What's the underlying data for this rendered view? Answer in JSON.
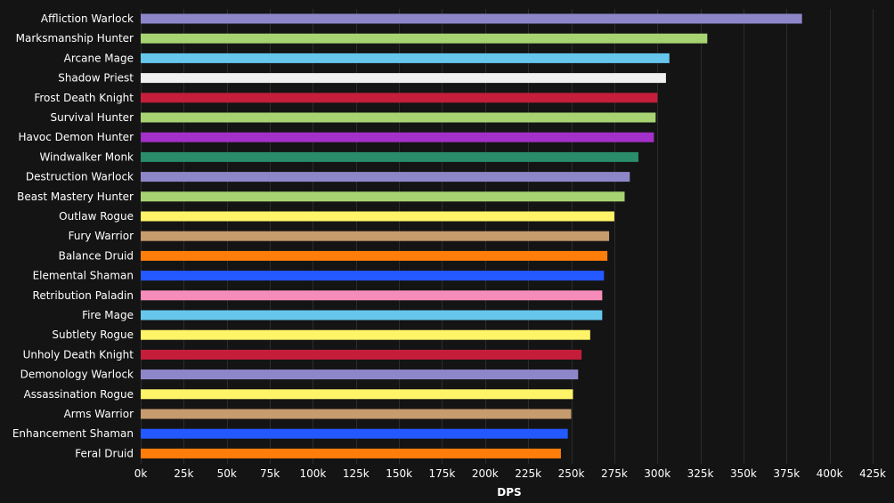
{
  "chart_data": {
    "type": "bar",
    "orientation": "horizontal",
    "xlabel": "DPS",
    "ylabel": "",
    "xlim": [
      0,
      425000
    ],
    "x_ticks": [
      0,
      25000,
      50000,
      75000,
      100000,
      125000,
      150000,
      175000,
      200000,
      225000,
      250000,
      275000,
      300000,
      325000,
      350000,
      375000,
      400000,
      425000
    ],
    "x_tick_labels": [
      "0k",
      "25k",
      "50k",
      "75k",
      "100k",
      "125k",
      "150k",
      "175k",
      "200k",
      "225k",
      "250k",
      "275k",
      "300k",
      "325k",
      "350k",
      "375k",
      "400k",
      "425k"
    ],
    "grid": true,
    "categories": [
      "Affliction Warlock",
      "Marksmanship Hunter",
      "Arcane Mage",
      "Shadow Priest",
      "Frost Death Knight",
      "Survival Hunter",
      "Havoc Demon Hunter",
      "Windwalker Monk",
      "Destruction Warlock",
      "Beast Mastery Hunter",
      "Outlaw Rogue",
      "Fury Warrior",
      "Balance Druid",
      "Elemental Shaman",
      "Retribution Paladin",
      "Fire Mage",
      "Subtlety Rogue",
      "Unholy Death Knight",
      "Demonology Warlock",
      "Assassination Rogue",
      "Arms Warrior",
      "Enhancement Shaman",
      "Feral Druid"
    ],
    "values": [
      384000,
      329000,
      307000,
      305000,
      300000,
      299000,
      298000,
      289000,
      284000,
      281000,
      275000,
      272000,
      271000,
      269000,
      268000,
      268000,
      261000,
      256000,
      254000,
      251000,
      250000,
      248000,
      244000
    ],
    "colors": [
      "#8d87c9",
      "#a8d372",
      "#66c6ec",
      "#f0f0f0",
      "#c41e3a",
      "#a8d372",
      "#a330c9",
      "#2a8c6a",
      "#8d87c9",
      "#a8d372",
      "#fff468",
      "#c69b6d",
      "#ff7d0a",
      "#2459ff",
      "#f58cba",
      "#66c6ec",
      "#fff468",
      "#c41e3a",
      "#8d87c9",
      "#fff468",
      "#c69b6d",
      "#2459ff",
      "#ff7d0a"
    ]
  }
}
